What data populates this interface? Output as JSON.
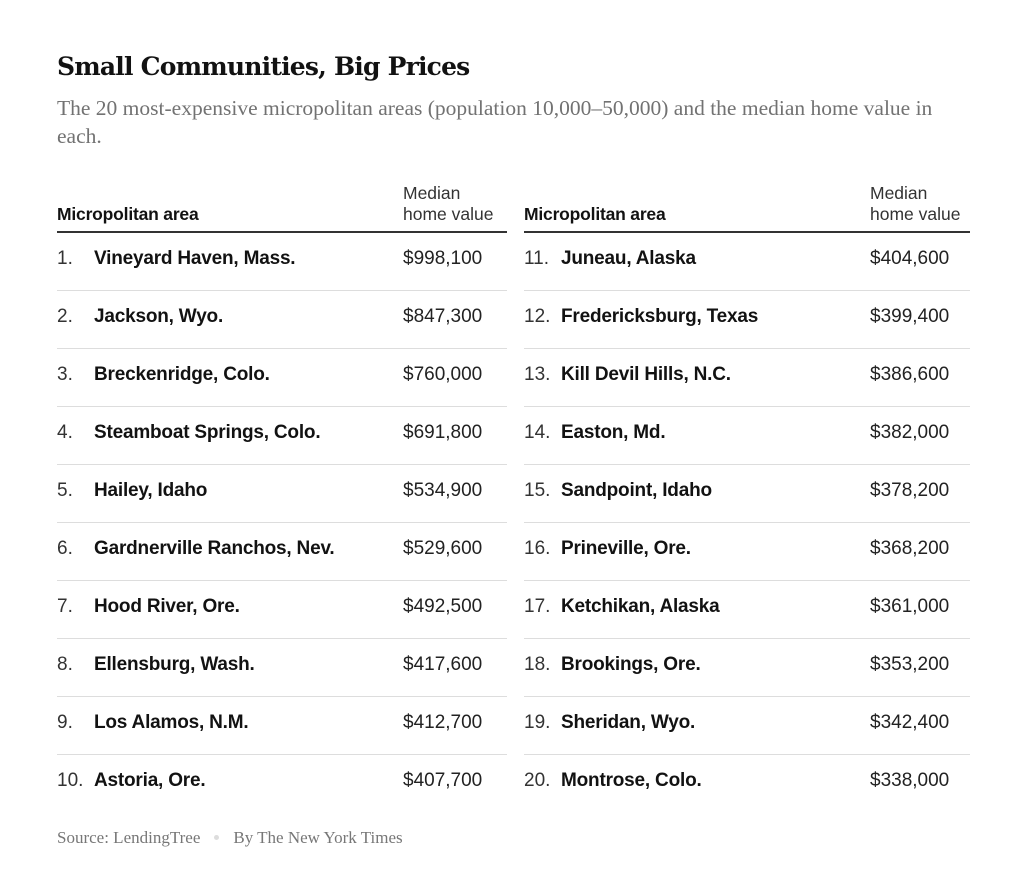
{
  "title": "Small Communities, Big Prices",
  "subtitle": "The 20 most-expensive micropolitan areas (population 10,000–50,000) and the median home value in each.",
  "footer": {
    "source": "Source: LendingTree",
    "credit": "By The New York Times"
  },
  "chart_data": {
    "type": "table",
    "columns": [
      "Micropolitan area",
      "Median home value"
    ],
    "value_header_lines": [
      "Median",
      "home value"
    ],
    "rows": [
      {
        "rank": "1.",
        "name": "Vineyard Haven, Mass.",
        "value": "$998,100"
      },
      {
        "rank": "2.",
        "name": "Jackson, Wyo.",
        "value": "$847,300"
      },
      {
        "rank": "3.",
        "name": "Breckenridge, Colo.",
        "value": "$760,000"
      },
      {
        "rank": "4.",
        "name": "Steamboat Springs, Colo.",
        "value": "$691,800"
      },
      {
        "rank": "5.",
        "name": "Hailey, Idaho",
        "value": "$534,900"
      },
      {
        "rank": "6.",
        "name": "Gardnerville Ranchos, Nev.",
        "value": "$529,600"
      },
      {
        "rank": "7.",
        "name": "Hood River, Ore.",
        "value": "$492,500"
      },
      {
        "rank": "8.",
        "name": "Ellensburg, Wash.",
        "value": "$417,600"
      },
      {
        "rank": "9.",
        "name": "Los Alamos, N.M.",
        "value": "$412,700"
      },
      {
        "rank": "10.",
        "name": "Astoria, Ore.",
        "value": "$407,700"
      },
      {
        "rank": "11.",
        "name": "Juneau, Alaska",
        "value": "$404,600"
      },
      {
        "rank": "12.",
        "name": "Fredericksburg, Texas",
        "value": "$399,400"
      },
      {
        "rank": "13.",
        "name": "Kill Devil Hills, N.C.",
        "value": "$386,600"
      },
      {
        "rank": "14.",
        "name": "Easton, Md.",
        "value": "$382,000"
      },
      {
        "rank": "15.",
        "name": "Sandpoint, Idaho",
        "value": "$378,200"
      },
      {
        "rank": "16.",
        "name": "Prineville, Ore.",
        "value": "$368,200"
      },
      {
        "rank": "17.",
        "name": "Ketchikan, Alaska",
        "value": "$361,000"
      },
      {
        "rank": "18.",
        "name": "Brookings, Ore.",
        "value": "$353,200"
      },
      {
        "rank": "19.",
        "name": "Sheridan, Wyo.",
        "value": "$342,400"
      },
      {
        "rank": "20.",
        "name": "Montrose, Colo.",
        "value": "$338,000"
      }
    ]
  }
}
